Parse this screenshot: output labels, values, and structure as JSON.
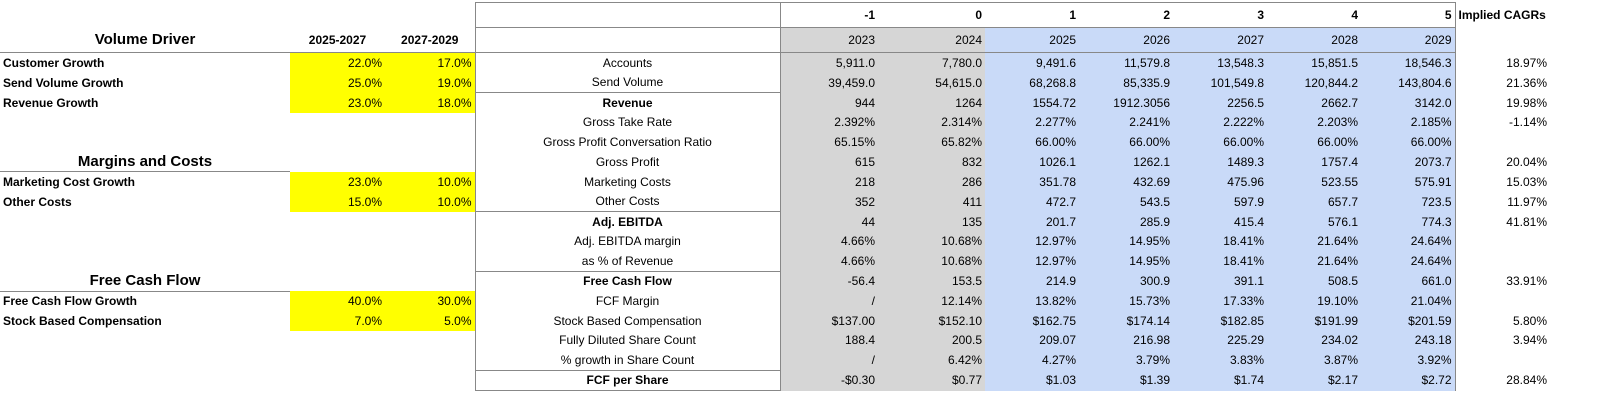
{
  "left": {
    "columns": [
      "2025-2027",
      "2027-2029"
    ],
    "sections": [
      {
        "title": "Volume Driver",
        "rows": [
          {
            "label": "Customer Growth",
            "values": [
              "22.0%",
              "17.0%"
            ]
          },
          {
            "label": "Send Volume Growth",
            "values": [
              "25.0%",
              "19.0%"
            ]
          },
          {
            "label": "Revenue Growth",
            "values": [
              "23.0%",
              "18.0%"
            ]
          }
        ]
      },
      {
        "title": "Margins and Costs",
        "rows": [
          {
            "label": "Marketing Cost Growth",
            "values": [
              "23.0%",
              "10.0%"
            ]
          },
          {
            "label": "Other Costs",
            "values": [
              "15.0%",
              "10.0%"
            ]
          }
        ]
      },
      {
        "title": "Free Cash Flow",
        "rows": [
          {
            "label": "Free Cash Flow Growth",
            "values": [
              "40.0%",
              "30.0%"
            ]
          },
          {
            "label": "Stock Based Compensation",
            "values": [
              "7.0%",
              "5.0%"
            ]
          }
        ]
      }
    ]
  },
  "model": {
    "index": [
      "-1",
      "0",
      "1",
      "2",
      "3",
      "4",
      "5"
    ],
    "cagr_header": "Implied CAGRs",
    "years": [
      "2023",
      "2024",
      "2025",
      "2026",
      "2027",
      "2028",
      "2029"
    ],
    "rows": [
      {
        "label": "Accounts",
        "values": [
          "5,911.0",
          "7,780.0",
          "9,491.6",
          "11,579.8",
          "13,548.3",
          "15,851.5",
          "18,546.3"
        ],
        "cagr": "18.97%"
      },
      {
        "label": "Send Volume",
        "values": [
          "39,459.0",
          "54,615.0",
          "68,268.8",
          "85,335.9",
          "101,549.8",
          "120,844.2",
          "143,804.6"
        ],
        "cagr": "21.36%"
      },
      {
        "label": "Revenue",
        "bold": true,
        "values": [
          "944",
          "1264",
          "1554.72",
          "1912.3056",
          "2256.5",
          "2662.7",
          "3142.0"
        ],
        "cagr": "19.98%"
      },
      {
        "label": "Gross Take Rate",
        "values": [
          "2.392%",
          "2.314%",
          "2.277%",
          "2.241%",
          "2.222%",
          "2.203%",
          "2.185%"
        ],
        "cagr": "-1.14%"
      },
      {
        "label": "Gross Profit Conversation Ratio",
        "values": [
          "65.15%",
          "65.82%",
          "66.00%",
          "66.00%",
          "66.00%",
          "66.00%",
          "66.00%"
        ],
        "cagr": null
      },
      {
        "label": "Gross Profit",
        "values": [
          "615",
          "832",
          "1026.1",
          "1262.1",
          "1489.3",
          "1757.4",
          "2073.7"
        ],
        "cagr": "20.04%"
      },
      {
        "label": "Marketing Costs",
        "values": [
          "218",
          "286",
          "351.78",
          "432.69",
          "475.96",
          "523.55",
          "575.91"
        ],
        "cagr": "15.03%"
      },
      {
        "label": "Other Costs",
        "values": [
          "352",
          "411",
          "472.7",
          "543.5",
          "597.9",
          "657.7",
          "723.5"
        ],
        "cagr": "11.97%"
      },
      {
        "label": "Adj. EBITDA",
        "bold": true,
        "values": [
          "44",
          "135",
          "201.7",
          "285.9",
          "415.4",
          "576.1",
          "774.3"
        ],
        "cagr": "41.81%"
      },
      {
        "label": "Adj. EBITDA margin",
        "values": [
          "4.66%",
          "10.68%",
          "12.97%",
          "14.95%",
          "18.41%",
          "21.64%",
          "24.64%"
        ],
        "cagr": null
      },
      {
        "label": "as % of Revenue",
        "values": [
          "4.66%",
          "10.68%",
          "12.97%",
          "14.95%",
          "18.41%",
          "21.64%",
          "24.64%"
        ],
        "cagr": null
      },
      {
        "label": "Free Cash Flow",
        "bold": true,
        "values": [
          "-56.4",
          "153.5",
          "214.9",
          "300.9",
          "391.1",
          "508.5",
          "661.0"
        ],
        "cagr": "33.91%"
      },
      {
        "label": "FCF Margin",
        "values": [
          "/",
          "12.14%",
          "13.82%",
          "15.73%",
          "17.33%",
          "19.10%",
          "21.04%"
        ],
        "cagr": null
      },
      {
        "label": "Stock Based Compensation",
        "values": [
          "$137.00",
          "$152.10",
          "$162.75",
          "$174.14",
          "$182.85",
          "$191.99",
          "$201.59"
        ],
        "cagr": "5.80%"
      },
      {
        "label": "Fully Diluted Share Count",
        "values": [
          "188.4",
          "200.5",
          "209.07",
          "216.98",
          "225.29",
          "234.02",
          "243.18"
        ],
        "cagr": "3.94%"
      },
      {
        "label": "% growth in Share Count",
        "values": [
          "/",
          "6.42%",
          "4.27%",
          "3.79%",
          "3.83%",
          "3.87%",
          "3.92%"
        ],
        "cagr": null
      },
      {
        "label": "FCF per Share",
        "bold": true,
        "values": [
          "-$0.30",
          "$0.77",
          "$1.03",
          "$1.39",
          "$1.74",
          "$2.17",
          "$2.72"
        ],
        "cagr": "28.84%"
      }
    ]
  }
}
